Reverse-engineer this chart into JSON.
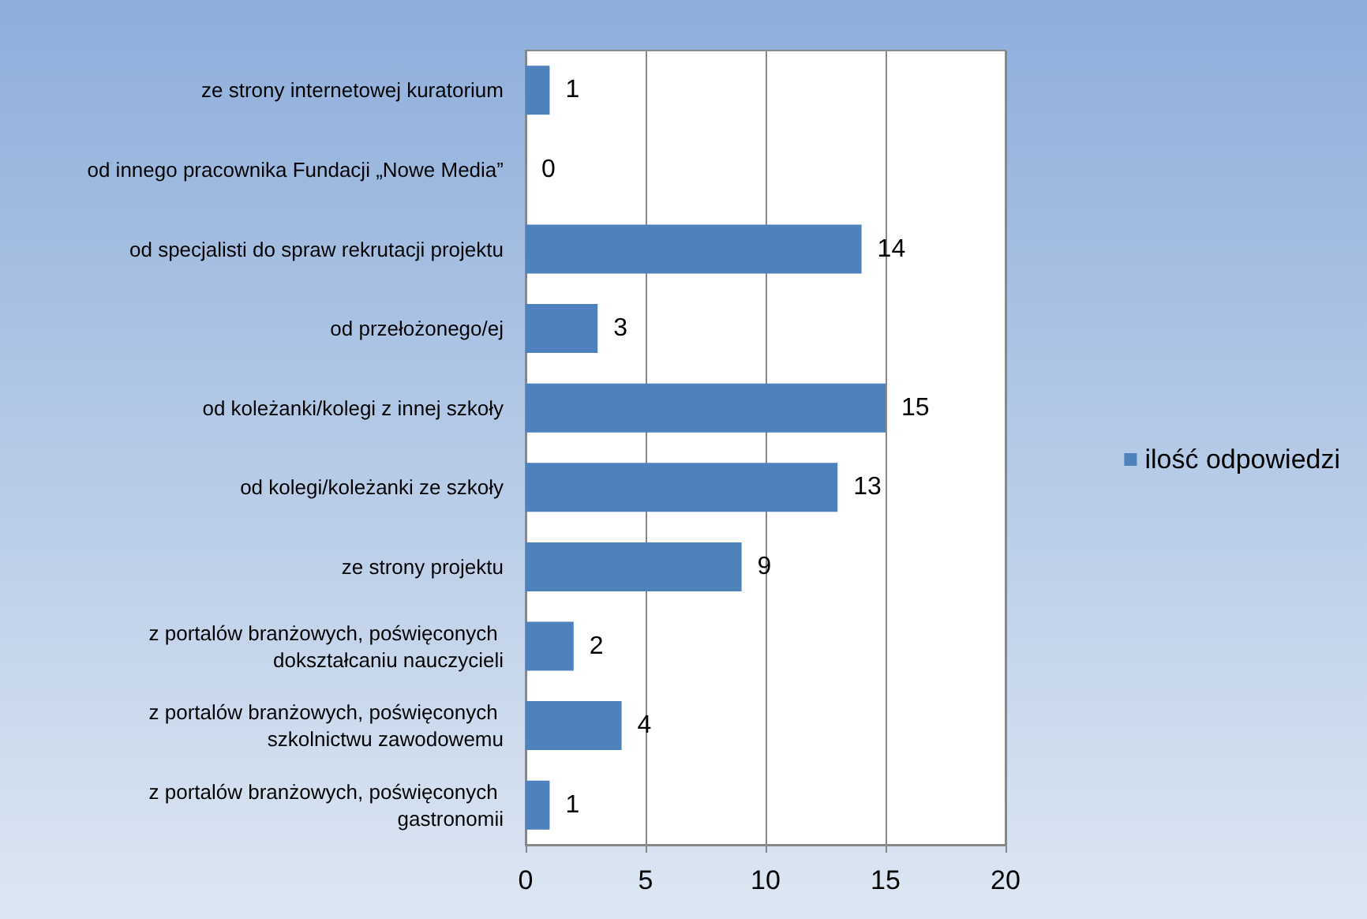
{
  "chart_data": {
    "type": "bar",
    "orientation": "horizontal",
    "categories": [
      "ze strony internetowej kuratorium",
      "od innego pracownika Fundacji „Nowe Media”",
      "od specjalisti do spraw rekrutacji projektu",
      "od przełożonego/ej",
      "od koleżanki/kolegi z innej szkoły",
      "od kolegi/koleżanki ze szkoły",
      "ze strony projektu",
      "z portalów branżowych, poświęconych dokształcaniu nauczycieli",
      "z portalów branżowych, poświęconych szkolnictwu zawodowemu",
      "z portalów branżowych, poświęconych gastronomii"
    ],
    "series": [
      {
        "name": "ilość odpowiedzi",
        "color": "#4f81bd",
        "values": [
          1,
          0,
          14,
          3,
          15,
          13,
          9,
          2,
          4,
          1
        ]
      }
    ],
    "xlim": [
      0,
      20
    ],
    "xticks": [
      0,
      5,
      10,
      15,
      20
    ],
    "grid": "x",
    "legend": "right",
    "data_labels": true
  }
}
